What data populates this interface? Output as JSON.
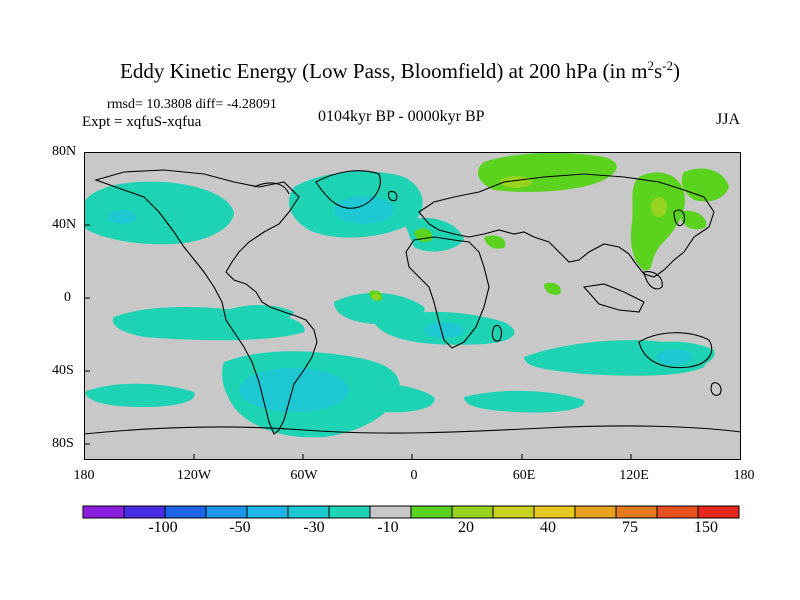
{
  "title": {
    "main": "Eddy Kinetic Energy (Low Pass, Bloomfield) at 200 hPa (in m",
    "sup1": "2",
    "mid": "s",
    "sup2": "-2",
    "close": ")"
  },
  "stats": "rmsd= 10.3808 diff= -4.28091",
  "expt": "Expt = xqfuS-xqfua",
  "period": "0104kyr BP - 0000kyr BP",
  "season": "JJA",
  "lat_ticks": [
    "80N",
    "40N",
    "0",
    "40S",
    "80S"
  ],
  "lon_ticks": [
    "180",
    "120W",
    "60W",
    "0",
    "60E",
    "120E",
    "180"
  ],
  "colorbar": {
    "labels": [
      "-100",
      "-50",
      "-30",
      "-10",
      "20",
      "40",
      "75",
      "150"
    ],
    "colors": [
      "#8c1ee0",
      "#4a2ee6",
      "#1e64e6",
      "#1e96e6",
      "#1eb4e6",
      "#1ec8d2",
      "#1ed2b4",
      "#c8c8c8",
      "#5ad21e",
      "#96d21e",
      "#c8d21e",
      "#e6c81e",
      "#e6a01e",
      "#e6781e",
      "#e6501e",
      "#e6281e"
    ]
  },
  "colors": {
    "ocean_land_bg": "#c8c8c8",
    "negative_fill": "#1ed2b4",
    "strong_negative_fill": "#1ec8d2",
    "positive_fill": "#5ad21e",
    "strong_positive_fill": "#96d21e"
  }
}
